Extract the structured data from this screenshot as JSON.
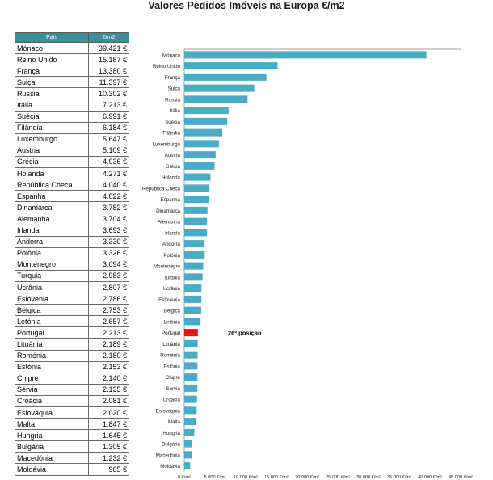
{
  "title": "Valores Pedidos Imóveis na Europa €/m2",
  "table": {
    "header_country": "País",
    "header_value": "€/m2",
    "rows": [
      {
        "country": "Mónaco",
        "value": "39.421 €"
      },
      {
        "country": "Reino Unido",
        "value": "15.187 €"
      },
      {
        "country": "França",
        "value": "13.380 €"
      },
      {
        "country": "Suiça",
        "value": "11.397 €"
      },
      {
        "country": "Russia",
        "value": "10.302 €"
      },
      {
        "country": "Itália",
        "value": "7.213 €"
      },
      {
        "country": "Suécia",
        "value": "6.991 €"
      },
      {
        "country": "Filândia",
        "value": "6.184 €"
      },
      {
        "country": "Luxemburgo",
        "value": "5.647 €"
      },
      {
        "country": "Austria",
        "value": "5.109 €"
      },
      {
        "country": "Grécia",
        "value": "4.936 €"
      },
      {
        "country": "Holanda",
        "value": "4.271 €"
      },
      {
        "country": "República Checa",
        "value": "4.040 €"
      },
      {
        "country": "Espanha",
        "value": "4.022 €"
      },
      {
        "country": "Dinamarca",
        "value": "3.782 €"
      },
      {
        "country": "Alemanha",
        "value": "3.704 €"
      },
      {
        "country": "Irlanda",
        "value": "3.693 €"
      },
      {
        "country": "Andorra",
        "value": "3.330 €"
      },
      {
        "country": "Polónia",
        "value": "3.326 €"
      },
      {
        "country": "Montenegro",
        "value": "3.094 €"
      },
      {
        "country": "Turquia",
        "value": "2.983 €"
      },
      {
        "country": "Ucrânia",
        "value": "2.807 €"
      },
      {
        "country": "Eslóvenia",
        "value": "2.786 €"
      },
      {
        "country": "Bélgica",
        "value": "2.753 €"
      },
      {
        "country": "Letónia",
        "value": "2.657 €"
      },
      {
        "country": "Portugal",
        "value": "2.213 €"
      },
      {
        "country": "Lituânia",
        "value": "2.189 €"
      },
      {
        "country": "Roménia",
        "value": "2.180 €"
      },
      {
        "country": "Estónia",
        "value": "2.153 €"
      },
      {
        "country": "Chipre",
        "value": "2.140 €"
      },
      {
        "country": "Sérvia",
        "value": "2.135 €"
      },
      {
        "country": "Croácia",
        "value": "2.081 €"
      },
      {
        "country": "Eslováquia",
        "value": "2.020 €"
      },
      {
        "country": "Malta",
        "value": "1.847 €"
      },
      {
        "country": "Hungria",
        "value": "1.645 €"
      },
      {
        "country": "Bulgária",
        "value": "1.305 €"
      },
      {
        "country": "Macedónia",
        "value": "1.232 €"
      },
      {
        "country": "Moldávia",
        "value": "965 €"
      }
    ]
  },
  "chart_data": {
    "type": "bar",
    "orientation": "horizontal",
    "title": "Valores Pedidos Imóveis na Europa €/m2",
    "categories": [
      "Mónaco",
      "Reino Unido",
      "França",
      "Suiça",
      "Russia",
      "Itália",
      "Suécia",
      "Filândia",
      "Luxemburgo",
      "Austria",
      "Grécia",
      "Holanda",
      "República Checa",
      "Espanha",
      "Dinamarca",
      "Alemanha",
      "Irlanda",
      "Andorra",
      "Polónia",
      "Montenegro",
      "Turquia",
      "Ucrânia",
      "Eslóvenia",
      "Bélgica",
      "Letónia",
      "Portugal",
      "Lituânia",
      "Roménia",
      "Estónia",
      "Chipre",
      "Sérvia",
      "Croácia",
      "Eslováquia",
      "Malta",
      "Hungria",
      "Bulgária",
      "Macedónia",
      "Moldávia"
    ],
    "values": [
      39421,
      15187,
      13380,
      11397,
      10302,
      7213,
      6991,
      6184,
      5647,
      5109,
      4936,
      4271,
      4040,
      4022,
      3782,
      3704,
      3693,
      3330,
      3326,
      3094,
      2983,
      2807,
      2786,
      2753,
      2657,
      2213,
      2189,
      2180,
      2153,
      2140,
      2135,
      2081,
      2020,
      1847,
      1645,
      1305,
      1232,
      965
    ],
    "xlim": [
      0,
      45000
    ],
    "x_ticks": [
      "0 €/m²",
      "5.000 €/m²",
      "10.000 €/m²",
      "15.000 €/m²",
      "20.000 €/m²",
      "25.000 €/m²",
      "30.000 €/m²",
      "35.000 €/m²",
      "40.000 €/m²",
      "45.000 €/m²"
    ],
    "bar_color": "#4aabc4",
    "highlight_category": "Portugal",
    "highlight_color": "#ee1111",
    "annotation": "26º posição",
    "grid": false,
    "legend": "none"
  }
}
